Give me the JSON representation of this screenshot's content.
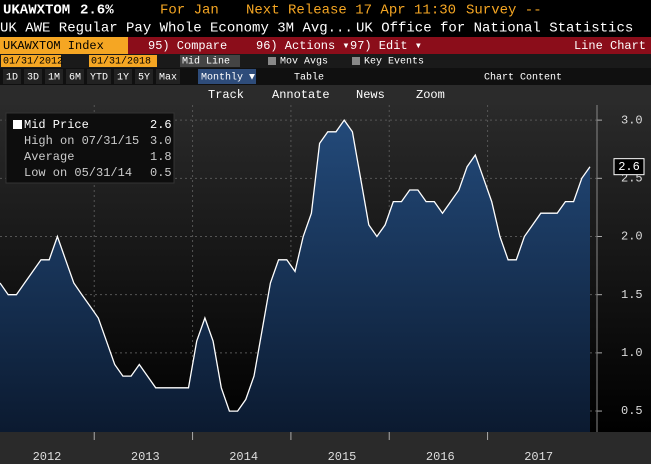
{
  "header": {
    "ticker": "UKAWXTOM",
    "last": "2.6%",
    "period": "For Jan",
    "next_release": "Next Release 17 Apr 11:30",
    "survey": "Survey --",
    "description": "UK AWE Regular Pay Whole Economy 3M Avg...",
    "source": "UK Office for National Statistics"
  },
  "menu": {
    "security": "UKAWXTOM Index",
    "items": [
      "95) Compare",
      "96) Actions ▾",
      "97) Edit ▾"
    ],
    "view": "Line Chart"
  },
  "controls": {
    "start_date": "01/31/2012",
    "end_date": "01/31/2018",
    "line_type": "Mid Line",
    "options": [
      "Mov Avgs",
      "Key Events"
    ],
    "ranges": [
      "1D",
      "3D",
      "1M",
      "6M",
      "YTD",
      "1Y",
      "5Y",
      "Max"
    ],
    "frequency": "Monthly ▼",
    "table": "Table",
    "chart_content": "Chart Content",
    "tools": [
      "Track",
      "Annotate",
      "News",
      "Zoom"
    ]
  },
  "legend": [
    {
      "label": "Mid Price",
      "value": "2.6"
    },
    {
      "label": "High on 07/31/15",
      "value": "3.0"
    },
    {
      "label": "Average",
      "value": "1.8"
    },
    {
      "label": "Low on 05/31/14",
      "value": "0.5"
    }
  ],
  "chart_data": {
    "type": "area",
    "color": "#ffffff",
    "fill": "#1f3d66",
    "categories": [
      null,
      null,
      null,
      null,
      null,
      "2012",
      null,
      null,
      null,
      null,
      null,
      null,
      null,
      null,
      null,
      null,
      null,
      "2013",
      null,
      null,
      null,
      null,
      null,
      null,
      null,
      null,
      null,
      null,
      null,
      "2014",
      null,
      null,
      null,
      null,
      null,
      null,
      null,
      null,
      null,
      null,
      null,
      "2015",
      null,
      null,
      null,
      null,
      null,
      null,
      null,
      null,
      null,
      null,
      null,
      "2016",
      null,
      null,
      null,
      null,
      null,
      null,
      null,
      null,
      null,
      null,
      null,
      "2017",
      null,
      null,
      null,
      null,
      null,
      null,
      null
    ],
    "values": [
      1.6,
      1.5,
      1.5,
      1.6,
      1.7,
      1.8,
      1.8,
      2.0,
      1.8,
      1.6,
      1.5,
      1.4,
      1.3,
      1.1,
      0.9,
      0.8,
      0.8,
      0.9,
      0.8,
      0.7,
      0.7,
      0.7,
      0.7,
      0.7,
      1.1,
      1.3,
      1.1,
      0.7,
      0.5,
      0.5,
      0.6,
      0.8,
      1.2,
      1.6,
      1.8,
      1.8,
      1.7,
      2.0,
      2.2,
      2.8,
      2.9,
      2.9,
      3.0,
      2.9,
      2.5,
      2.1,
      2.0,
      2.1,
      2.3,
      2.3,
      2.4,
      2.4,
      2.3,
      2.3,
      2.2,
      2.3,
      2.4,
      2.6,
      2.7,
      2.5,
      2.3,
      2.0,
      1.8,
      1.8,
      2.0,
      2.1,
      2.2,
      2.2,
      2.2,
      2.3,
      2.3,
      2.5,
      2.6
    ],
    "last_value_label": "2.6",
    "ylim": [
      0.32,
      3.13
    ],
    "yticks": [
      0.5,
      {
        "value": 1,
        "label": "1.0"
      },
      1.5,
      {
        "value": 2,
        "label": "2.0"
      },
      2.5,
      {
        "value": 3,
        "label": "3.0"
      }
    ],
    "grid": true
  }
}
